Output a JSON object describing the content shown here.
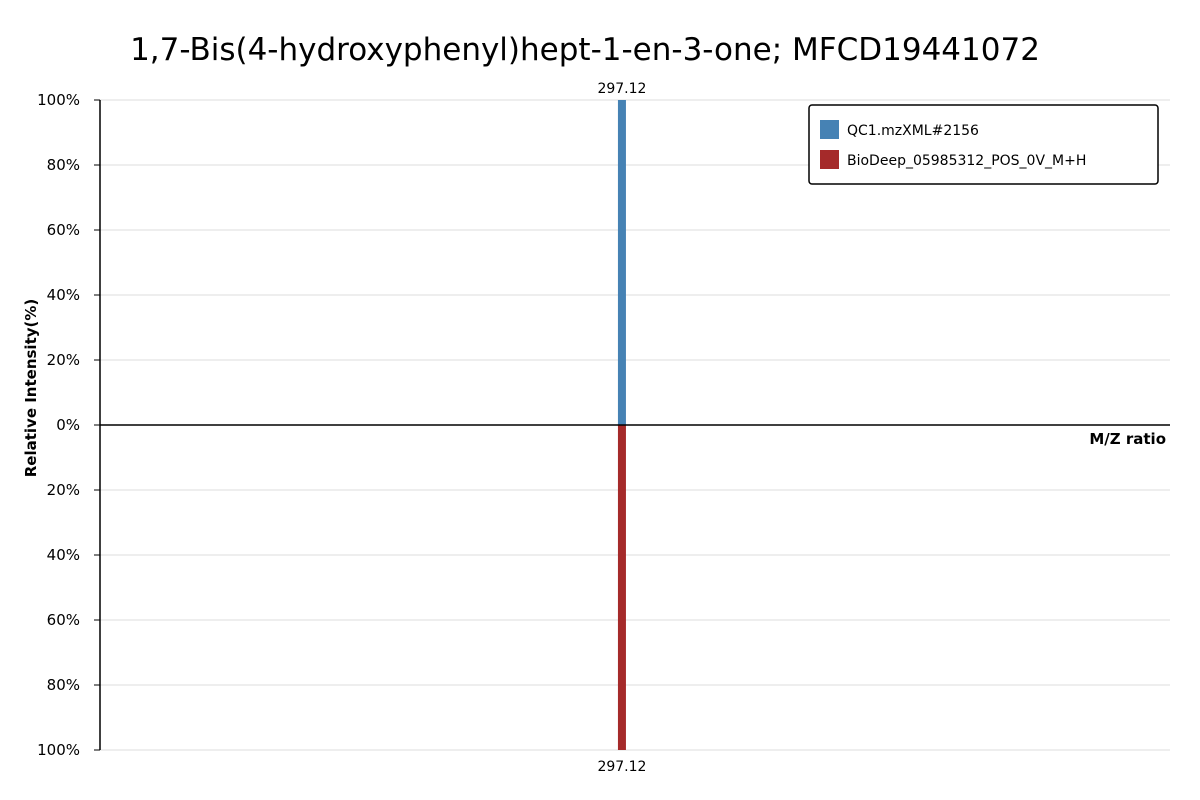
{
  "chart_data": {
    "type": "bar",
    "title": "1,7-Bis(4-hydroxyphenyl)hept-1-en-3-one;  MFCD19441072",
    "xlabel": "M/Z ratio",
    "ylabel": "Relative Intensity(%)",
    "y_ticks_top": [
      "100%",
      "80%",
      "60%",
      "40%",
      "20%",
      "0%"
    ],
    "y_ticks_bottom": [
      "20%",
      "40%",
      "60%",
      "80%",
      "100%"
    ],
    "ylim": [
      -100,
      100
    ],
    "xlim": [
      142,
      460
    ],
    "grid": true,
    "legend_position": "top-right",
    "series": [
      {
        "name": "QC1.mzXML#2156",
        "color": "#4682b4",
        "direction": "up",
        "peaks": [
          {
            "mz": 297.12,
            "intensity": 100,
            "label": "297.12"
          }
        ]
      },
      {
        "name": "BioDeep_05985312_POS_0V_M+H",
        "color": "#a52a2a",
        "direction": "down",
        "peaks": [
          {
            "mz": 297.12,
            "intensity": 100,
            "label": "297.12"
          }
        ]
      }
    ]
  }
}
